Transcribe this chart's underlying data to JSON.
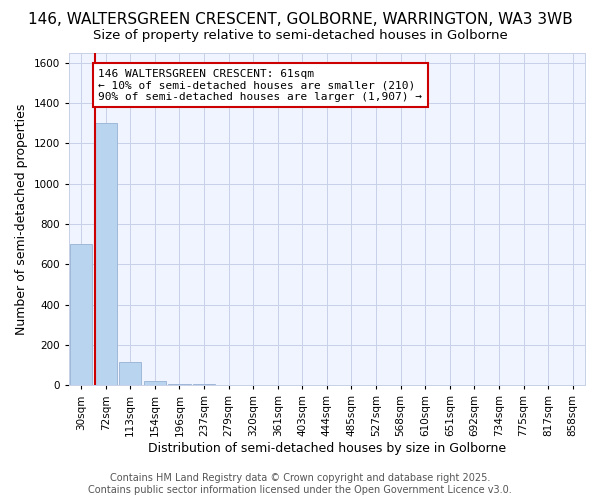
{
  "title": "146, WALTERSGREEN CRESCENT, GOLBORNE, WARRINGTON, WA3 3WB",
  "subtitle": "Size of property relative to semi-detached houses in Golborne",
  "xlabel": "Distribution of semi-detached houses by size in Golborne",
  "ylabel": "Number of semi-detached properties",
  "bins": [
    "30sqm",
    "72sqm",
    "113sqm",
    "154sqm",
    "196sqm",
    "237sqm",
    "279sqm",
    "320sqm",
    "361sqm",
    "403sqm",
    "444sqm",
    "485sqm",
    "527sqm",
    "568sqm",
    "610sqm",
    "651sqm",
    "692sqm",
    "734sqm",
    "775sqm",
    "817sqm",
    "858sqm"
  ],
  "values": [
    700,
    1300,
    115,
    20,
    5,
    5,
    0,
    0,
    0,
    0,
    0,
    0,
    0,
    0,
    0,
    0,
    0,
    0,
    0,
    0,
    0
  ],
  "bar_color": "#b8d4ee",
  "bar_edge_color": "#a0b8d8",
  "property_line_color": "#cc0000",
  "property_line_bin_index": 1,
  "annotation_text": "146 WALTERSGREEN CRESCENT: 61sqm\n← 10% of semi-detached houses are smaller (210)\n90% of semi-detached houses are larger (1,907) →",
  "annotation_box_color": "#cc0000",
  "annotation_text_color": "#000000",
  "ylim": [
    0,
    1650
  ],
  "yticks": [
    0,
    200,
    400,
    600,
    800,
    1000,
    1200,
    1400,
    1600
  ],
  "footer_line1": "Contains HM Land Registry data © Crown copyright and database right 2025.",
  "footer_line2": "Contains public sector information licensed under the Open Government Licence v3.0.",
  "bg_color": "#ffffff",
  "plot_bg_color": "#f0f4ff",
  "grid_color": "#c8d0e8",
  "title_fontsize": 11,
  "subtitle_fontsize": 9.5,
  "axis_label_fontsize": 9,
  "tick_fontsize": 7.5,
  "annotation_fontsize": 8,
  "footer_fontsize": 7
}
